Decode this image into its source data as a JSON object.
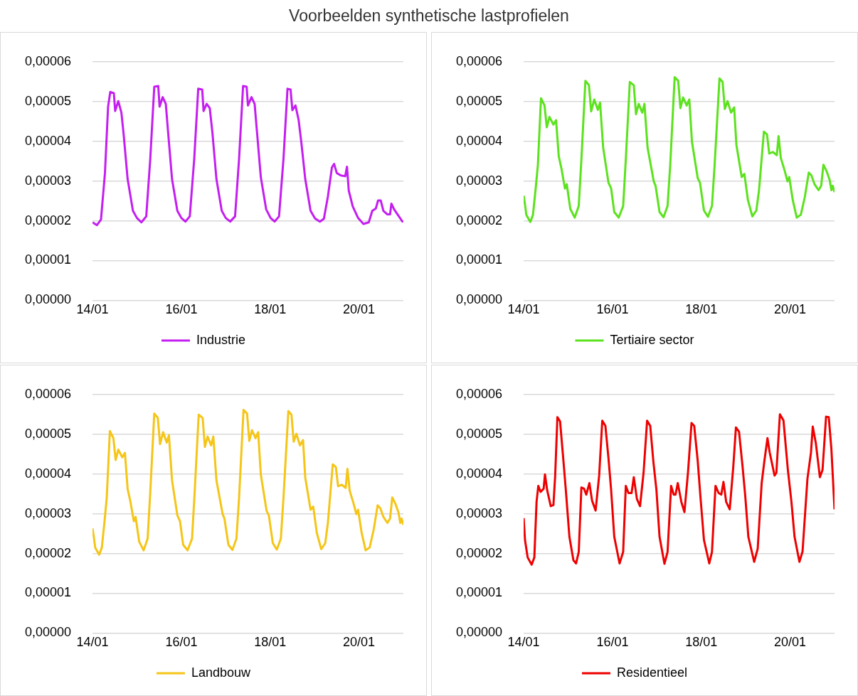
{
  "chart_data": [
    {
      "type": "line",
      "title": "Voorbeelden synthetische lastprofielen",
      "xlim": [
        "--01-14",
        "--01-21"
      ],
      "xticks": [
        {
          "value": "--01-14",
          "label": "14/01"
        },
        {
          "value": "--01-16",
          "label": "16/01"
        },
        {
          "value": "--01-18",
          "label": "18/01"
        },
        {
          "value": "--01-20",
          "label": "20/01"
        }
      ],
      "ylim": [
        0,
        6e-05
      ],
      "yticks": [
        {
          "value": 0,
          "label": "0,00000"
        },
        {
          "value": 1e-05,
          "label": "0,00001"
        },
        {
          "value": 2e-05,
          "label": "0,00002"
        },
        {
          "value": 3e-05,
          "label": "0,00003"
        },
        {
          "value": 4e-05,
          "label": "0,00004"
        },
        {
          "value": 5e-05,
          "label": "0,00005"
        },
        {
          "value": 6e-05,
          "label": "0,00006"
        }
      ],
      "grid": "y",
      "legend": "bottom",
      "marker": "none",
      "x": [
        "--01-14T00:00",
        "--01-14T02:24",
        "--01-14T04:34",
        "--01-14T06:43",
        "--01-14T08:24",
        "--01-14T09:36",
        "--01-14T11:31",
        "--01-14T12:14",
        "--01-14T13:55",
        "--01-14T15:36",
        "--01-14T16:48",
        "--01-14T18:58",
        "--01-14T21:50",
        "--01-15T00:00",
        "--01-15T02:24",
        "--01-15T05:02",
        "--01-15T07:12",
        "--01-15T09:22",
        "--01-15T11:31",
        "--01-15T12:14",
        "--01-15T13:55",
        "--01-15T15:36",
        "--01-15T16:48",
        "--01-15T18:58",
        "--01-15T21:50",
        "--01-16T00:00",
        "--01-16T02:10",
        "--01-16T04:34",
        "--01-16T06:58",
        "--01-16T09:07",
        "--01-16T11:17",
        "--01-16T12:00",
        "--01-16T13:41",
        "--01-16T15:22",
        "--01-16T16:48",
        "--01-16T18:58",
        "--01-16T21:50",
        "--01-17T00:00",
        "--01-17T02:24",
        "--01-17T05:02",
        "--01-17T07:12",
        "--01-17T09:22",
        "--01-17T11:17",
        "--01-17T12:00",
        "--01-17T13:55",
        "--01-17T15:36",
        "--01-17T16:48",
        "--01-17T18:58",
        "--01-17T21:50",
        "--01-18T00:14",
        "--01-18T02:24",
        "--01-18T04:48",
        "--01-18T07:12",
        "--01-18T09:22",
        "--01-18T11:02",
        "--01-18T12:00",
        "--01-18T13:41",
        "--01-18T15:22",
        "--01-18T16:48",
        "--01-18T18:58",
        "--01-18T21:50",
        "--01-19T00:14",
        "--01-19T02:53",
        "--01-19T05:02",
        "--01-19T07:12",
        "--01-19T09:22",
        "--01-19T10:34",
        "--01-19T12:00",
        "--01-19T14:10",
        "--01-19T16:34",
        "--01-19T17:31",
        "--01-19T18:29",
        "--01-19T20:38",
        "--01-19T23:31",
        "--01-20T02:24",
        "--01-20T05:17",
        "--01-20T07:12",
        "--01-20T09:07",
        "--01-20T10:19",
        "--01-20T11:46",
        "--01-20T13:12",
        "--01-20T15:22",
        "--01-20T16:48",
        "--01-20T17:31",
        "--01-20T18:58",
        "--01-20T21:07",
        "--01-20T23:46"
      ],
      "series": [
        {
          "name": "Industrie",
          "color": "#c41ef0",
          "values": [
            1.96e-05,
            1.89e-05,
            2.03e-05,
            3.2e-05,
            4.87e-05,
            5.24e-05,
            5.21e-05,
            4.76e-05,
            5.01e-05,
            4.72e-05,
            4.18e-05,
            3.05e-05,
            2.25e-05,
            2.07e-05,
            1.96e-05,
            2.11e-05,
            3.56e-05,
            5.37e-05,
            5.39e-05,
            4.87e-05,
            5.11e-05,
            4.94e-05,
            4.25e-05,
            3.05e-05,
            2.25e-05,
            2.07e-05,
            1.98e-05,
            2.11e-05,
            3.56e-05,
            5.32e-05,
            5.3e-05,
            4.76e-05,
            4.94e-05,
            4.83e-05,
            4.21e-05,
            3.05e-05,
            2.25e-05,
            2.07e-05,
            1.98e-05,
            2.11e-05,
            3.56e-05,
            5.39e-05,
            5.37e-05,
            4.9e-05,
            5.11e-05,
            4.94e-05,
            4.28e-05,
            3.09e-05,
            2.29e-05,
            2.07e-05,
            1.98e-05,
            2.11e-05,
            3.56e-05,
            5.32e-05,
            5.3e-05,
            4.78e-05,
            4.9e-05,
            4.54e-05,
            3.99e-05,
            3.05e-05,
            2.25e-05,
            2.06e-05,
            1.98e-05,
            2.05e-05,
            2.61e-05,
            3.34e-05,
            3.43e-05,
            3.2e-05,
            3.14e-05,
            3.12e-05,
            3.36e-05,
            2.76e-05,
            2.36e-05,
            2.07e-05,
            1.92e-05,
            1.96e-05,
            2.25e-05,
            2.31e-05,
            2.51e-05,
            2.51e-05,
            2.25e-05,
            2.16e-05,
            2.16e-05,
            2.43e-05,
            2.29e-05,
            2.14e-05,
            1.96e-05
          ]
        }
      ]
    },
    {
      "type": "line",
      "xlim": [
        "--01-14",
        "--01-21"
      ],
      "xticks": [
        {
          "value": "--01-14",
          "label": "14/01"
        },
        {
          "value": "--01-16",
          "label": "16/01"
        },
        {
          "value": "--01-18",
          "label": "18/01"
        },
        {
          "value": "--01-20",
          "label": "20/01"
        }
      ],
      "ylim": [
        0,
        6e-05
      ],
      "yticks": [
        {
          "value": 0,
          "label": "0,00000"
        },
        {
          "value": 1e-05,
          "label": "0,00001"
        },
        {
          "value": 2e-05,
          "label": "0,00002"
        },
        {
          "value": 3e-05,
          "label": "0,00003"
        },
        {
          "value": 4e-05,
          "label": "0,00004"
        },
        {
          "value": 5e-05,
          "label": "0,00005"
        },
        {
          "value": 6e-05,
          "label": "0,00006"
        }
      ],
      "grid": "y",
      "legend": "bottom",
      "marker": "none",
      "x": [
        "--01-14T00:00",
        "--01-14T00:43",
        "--01-14T01:26",
        "--01-14T03:36",
        "--01-14T05:02",
        "--01-14T06:29",
        "--01-14T07:41",
        "--01-14T09:22",
        "--01-14T11:17",
        "--01-14T12:29",
        "--01-14T13:55",
        "--01-14T16:05",
        "--01-14T17:31",
        "--01-14T18:58",
        "--01-14T20:24",
        "--01-14T22:19",
        "--01-14T23:17",
        "--01-15T01:12",
        "--01-15T03:36",
        "--01-15T05:46",
        "--01-15T07:12",
        "--01-15T09:22",
        "--01-15T11:17",
        "--01-15T12:29",
        "--01-15T14:10",
        "--01-15T16:05",
        "--01-15T17:17",
        "--01-15T18:58",
        "--01-15T21:50",
        "--01-15T23:17",
        "--01-16T00:58",
        "--01-16T03:22",
        "--01-16T05:46",
        "--01-16T07:12",
        "--01-16T09:22",
        "--01-16T11:31",
        "--01-16T12:43",
        "--01-16T14:10",
        "--01-16T16:05",
        "--01-16T17:17",
        "--01-16T18:58",
        "--01-16T22:19",
        "--01-16T23:17",
        "--01-17T01:26",
        "--01-17T03:36",
        "--01-17T05:46",
        "--01-17T07:12",
        "--01-17T09:36",
        "--01-17T11:31",
        "--01-17T12:43",
        "--01-17T14:10",
        "--01-17T16:05",
        "--01-17T17:31",
        "--01-17T18:58",
        "--01-17T22:05",
        "--01-17T23:17",
        "--01-18T01:26",
        "--01-18T03:36",
        "--01-18T05:46",
        "--01-18T07:12",
        "--01-18T09:50",
        "--01-18T11:31",
        "--01-18T12:43",
        "--01-18T14:10",
        "--01-18T16:05",
        "--01-18T17:46",
        "--01-18T18:58",
        "--01-18T21:50",
        "--01-18T23:17",
        "--01-19T01:12",
        "--01-19T03:36",
        "--01-19T05:46",
        "--01-19T07:12",
        "--01-19T09:50",
        "--01-19T11:31",
        "--01-19T12:43",
        "--01-19T14:38",
        "--01-19T16:48",
        "--01-19T17:46",
        "--01-19T18:58",
        "--01-19T21:07",
        "--01-19T22:34",
        "--01-19T23:31",
        "--01-20T01:26",
        "--01-20T03:36",
        "--01-20T05:46",
        "--01-20T07:55",
        "--01-20T10:05",
        "--01-20T11:31",
        "--01-20T13:12",
        "--01-20T15:22",
        "--01-20T16:48",
        "--01-20T18:00",
        "--01-20T19:41",
        "--01-20T21:22",
        "--01-20T22:19",
        "--01-20T23:02",
        "--01-21T00:00"
      ],
      "series": [
        {
          "name": "Tertiaire sector",
          "color": "#5ce21e",
          "values": [
            2.63e-05,
            2.41e-05,
            2.15e-05,
            1.97e-05,
            2.15e-05,
            2.81e-05,
            3.4e-05,
            5.08e-05,
            4.9e-05,
            4.35e-05,
            4.61e-05,
            4.42e-05,
            4.53e-05,
            3.62e-05,
            3.32e-05,
            2.81e-05,
            2.92e-05,
            2.3e-05,
            2.08e-05,
            2.37e-05,
            3.54e-05,
            5.52e-05,
            5.41e-05,
            4.75e-05,
            5.05e-05,
            4.79e-05,
            4.97e-05,
            3.84e-05,
            2.96e-05,
            2.81e-05,
            2.22e-05,
            2.08e-05,
            2.37e-05,
            3.54e-05,
            5.49e-05,
            5.41e-05,
            4.68e-05,
            4.94e-05,
            4.72e-05,
            4.94e-05,
            3.84e-05,
            2.99e-05,
            2.88e-05,
            2.22e-05,
            2.09e-05,
            2.37e-05,
            3.4e-05,
            5.61e-05,
            5.52e-05,
            4.83e-05,
            5.1e-05,
            4.9e-05,
            5.05e-05,
            3.98e-05,
            3.07e-05,
            2.96e-05,
            2.26e-05,
            2.1e-05,
            2.37e-05,
            3.4e-05,
            5.58e-05,
            5.49e-05,
            4.81e-05,
            5.01e-05,
            4.72e-05,
            4.85e-05,
            3.91e-05,
            3.1e-05,
            3.18e-05,
            2.52e-05,
            2.11e-05,
            2.26e-05,
            2.77e-05,
            4.24e-05,
            4.17e-05,
            3.69e-05,
            3.73e-05,
            3.65e-05,
            4.13e-05,
            3.58e-05,
            3.25e-05,
            2.99e-05,
            3.1e-05,
            2.52e-05,
            2.08e-05,
            2.15e-05,
            2.59e-05,
            3.21e-05,
            3.14e-05,
            2.92e-05,
            2.77e-05,
            2.88e-05,
            3.41e-05,
            3.25e-05,
            3.03e-05,
            2.77e-05,
            2.88e-05,
            2.72e-05
          ]
        }
      ]
    },
    {
      "type": "line",
      "xlim": [
        "--01-14",
        "--01-21"
      ],
      "xticks": [
        {
          "value": "--01-14",
          "label": "14/01"
        },
        {
          "value": "--01-16",
          "label": "16/01"
        },
        {
          "value": "--01-18",
          "label": "18/01"
        },
        {
          "value": "--01-20",
          "label": "20/01"
        }
      ],
      "ylim": [
        0,
        6e-05
      ],
      "yticks": [
        {
          "value": 0,
          "label": "0,00000"
        },
        {
          "value": 1e-05,
          "label": "0,00001"
        },
        {
          "value": 2e-05,
          "label": "0,00002"
        },
        {
          "value": 3e-05,
          "label": "0,00003"
        },
        {
          "value": 4e-05,
          "label": "0,00004"
        },
        {
          "value": 5e-05,
          "label": "0,00005"
        },
        {
          "value": 6e-05,
          "label": "0,00006"
        }
      ],
      "grid": "y",
      "legend": "bottom",
      "marker": "none",
      "x": [
        "--01-14T00:00",
        "--01-14T00:43",
        "--01-14T01:26",
        "--01-14T03:36",
        "--01-14T05:02",
        "--01-14T06:29",
        "--01-14T07:41",
        "--01-14T09:22",
        "--01-14T11:17",
        "--01-14T12:29",
        "--01-14T13:55",
        "--01-14T16:05",
        "--01-14T17:31",
        "--01-14T18:58",
        "--01-14T20:24",
        "--01-14T22:19",
        "--01-14T23:17",
        "--01-15T01:12",
        "--01-15T03:36",
        "--01-15T05:46",
        "--01-15T07:12",
        "--01-15T09:22",
        "--01-15T11:17",
        "--01-15T12:29",
        "--01-15T14:10",
        "--01-15T16:05",
        "--01-15T17:17",
        "--01-15T18:58",
        "--01-15T21:50",
        "--01-15T23:17",
        "--01-16T00:58",
        "--01-16T03:22",
        "--01-16T05:46",
        "--01-16T07:12",
        "--01-16T09:22",
        "--01-16T11:31",
        "--01-16T12:43",
        "--01-16T14:10",
        "--01-16T16:05",
        "--01-16T17:17",
        "--01-16T18:58",
        "--01-16T22:19",
        "--01-16T23:17",
        "--01-17T01:26",
        "--01-17T03:36",
        "--01-17T05:46",
        "--01-17T07:12",
        "--01-17T09:36",
        "--01-17T11:31",
        "--01-17T12:43",
        "--01-17T14:10",
        "--01-17T16:05",
        "--01-17T17:31",
        "--01-17T18:58",
        "--01-17T22:05",
        "--01-17T23:17",
        "--01-18T01:26",
        "--01-18T03:36",
        "--01-18T05:46",
        "--01-18T07:12",
        "--01-18T09:50",
        "--01-18T11:31",
        "--01-18T12:43",
        "--01-18T14:10",
        "--01-18T16:05",
        "--01-18T17:46",
        "--01-18T18:58",
        "--01-18T21:50",
        "--01-18T23:17",
        "--01-19T01:12",
        "--01-19T03:36",
        "--01-19T05:46",
        "--01-19T07:12",
        "--01-19T09:50",
        "--01-19T11:31",
        "--01-19T12:43",
        "--01-19T14:38",
        "--01-19T16:48",
        "--01-19T17:46",
        "--01-19T18:58",
        "--01-19T21:07",
        "--01-19T22:34",
        "--01-19T23:31",
        "--01-20T01:26",
        "--01-20T03:36",
        "--01-20T05:46",
        "--01-20T07:55",
        "--01-20T10:05",
        "--01-20T11:31",
        "--01-20T13:12",
        "--01-20T15:22",
        "--01-20T16:48",
        "--01-20T18:00",
        "--01-20T19:41",
        "--01-20T21:22",
        "--01-20T22:19",
        "--01-20T23:02",
        "--01-21T00:00"
      ],
      "series": [
        {
          "name": "Landbouw",
          "color": "#f5c518",
          "values": [
            2.63e-05,
            2.41e-05,
            2.15e-05,
            1.97e-05,
            2.15e-05,
            2.81e-05,
            3.4e-05,
            5.08e-05,
            4.9e-05,
            4.35e-05,
            4.61e-05,
            4.42e-05,
            4.53e-05,
            3.62e-05,
            3.32e-05,
            2.81e-05,
            2.92e-05,
            2.3e-05,
            2.08e-05,
            2.37e-05,
            3.54e-05,
            5.52e-05,
            5.41e-05,
            4.75e-05,
            5.05e-05,
            4.79e-05,
            4.97e-05,
            3.84e-05,
            2.96e-05,
            2.81e-05,
            2.22e-05,
            2.08e-05,
            2.37e-05,
            3.54e-05,
            5.49e-05,
            5.41e-05,
            4.68e-05,
            4.94e-05,
            4.72e-05,
            4.94e-05,
            3.84e-05,
            2.99e-05,
            2.88e-05,
            2.22e-05,
            2.09e-05,
            2.37e-05,
            3.4e-05,
            5.61e-05,
            5.52e-05,
            4.83e-05,
            5.1e-05,
            4.9e-05,
            5.05e-05,
            3.98e-05,
            3.07e-05,
            2.96e-05,
            2.26e-05,
            2.1e-05,
            2.37e-05,
            3.4e-05,
            5.58e-05,
            5.49e-05,
            4.81e-05,
            5.01e-05,
            4.72e-05,
            4.85e-05,
            3.91e-05,
            3.1e-05,
            3.18e-05,
            2.52e-05,
            2.11e-05,
            2.26e-05,
            2.77e-05,
            4.24e-05,
            4.17e-05,
            3.69e-05,
            3.73e-05,
            3.65e-05,
            4.13e-05,
            3.58e-05,
            3.25e-05,
            2.99e-05,
            3.1e-05,
            2.52e-05,
            2.08e-05,
            2.15e-05,
            2.59e-05,
            3.21e-05,
            3.14e-05,
            2.92e-05,
            2.77e-05,
            2.88e-05,
            3.41e-05,
            3.25e-05,
            3.03e-05,
            2.77e-05,
            2.88e-05,
            2.72e-05
          ]
        }
      ]
    },
    {
      "type": "line",
      "xlim": [
        "--01-14",
        "--01-21"
      ],
      "xticks": [
        {
          "value": "--01-14",
          "label": "14/01"
        },
        {
          "value": "--01-16",
          "label": "16/01"
        },
        {
          "value": "--01-18",
          "label": "18/01"
        },
        {
          "value": "--01-20",
          "label": "20/01"
        }
      ],
      "ylim": [
        0,
        6e-05
      ],
      "yticks": [
        {
          "value": 0,
          "label": "0,00000"
        },
        {
          "value": 1e-05,
          "label": "0,00001"
        },
        {
          "value": 2e-05,
          "label": "0,00002"
        },
        {
          "value": 3e-05,
          "label": "0,00003"
        },
        {
          "value": 4e-05,
          "label": "0,00004"
        },
        {
          "value": 5e-05,
          "label": "0,00005"
        },
        {
          "value": 6e-05,
          "label": "0,00006"
        }
      ],
      "grid": "y",
      "legend": "bottom",
      "marker": "none",
      "x": [
        "--01-14T00:00",
        "--01-14T00:43",
        "--01-14T02:10",
        "--01-14T04:19",
        "--01-14T05:46",
        "--01-14T06:58",
        "--01-14T07:55",
        "--01-14T09:07",
        "--01-14T10:48",
        "--01-14T11:31",
        "--01-14T12:43",
        "--01-14T14:38",
        "--01-14T16:05",
        "--01-14T17:02",
        "--01-14T18:14",
        "--01-14T19:41",
        "--01-14T21:22",
        "--01-14T22:48",
        "--01-15T00:43",
        "--01-15T02:53",
        "--01-15T04:19",
        "--01-15T05:46",
        "--01-15T07:12",
        "--01-15T08:38",
        "--01-15T09:50",
        "--01-15T11:31",
        "--01-15T12:58",
        "--01-15T14:53",
        "--01-15T16:48",
        "--01-15T18:29",
        "--01-15T20:10",
        "--01-15T21:50",
        "--01-15T23:17",
        "--01-16T00:58",
        "--01-16T03:50",
        "--01-16T05:46",
        "--01-16T07:12",
        "--01-16T08:38",
        "--01-16T10:19",
        "--01-16T11:31",
        "--01-16T13:12",
        "--01-16T14:53",
        "--01-16T16:48",
        "--01-16T18:43",
        "--01-16T20:24",
        "--01-16T22:05",
        "--01-16T23:46",
        "--01-17T01:26",
        "--01-17T04:05",
        "--01-17T05:46",
        "--01-17T07:41",
        "--01-17T09:07",
        "--01-17T10:05",
        "--01-17T11:17",
        "--01-17T13:12",
        "--01-17T14:53",
        "--01-17T16:48",
        "--01-17T18:43",
        "--01-17T20:10",
        "--01-17T22:05",
        "--01-17T23:31",
        "--01-18T01:26",
        "--01-18T04:19",
        "--01-18T05:46",
        "--01-18T07:41",
        "--01-18T09:22",
        "--01-18T10:48",
        "--01-18T12:00",
        "--01-18T13:26",
        "--01-18T15:22",
        "--01-18T17:17",
        "--01-18T18:43",
        "--01-18T20:24",
        "--01-18T22:19",
        "--01-18T23:46",
        "--01-19T01:26",
        "--01-19T04:34",
        "--01-19T06:29",
        "--01-19T08:38",
        "--01-19T10:05",
        "--01-19T11:46",
        "--01-19T12:58",
        "--01-19T15:36",
        "--01-19T16:34",
        "--01-19T18:29",
        "--01-19T20:24",
        "--01-19T22:48",
        "--01-20T00:43",
        "--01-20T02:24",
        "--01-20T05:02",
        "--01-20T06:43",
        "--01-20T09:22",
        "--01-20T11:17",
        "--01-20T12:14",
        "--01-20T13:55",
        "--01-20T16:05",
        "--01-20T17:31",
        "--01-20T19:26",
        "--01-20T20:53",
        "--01-20T22:19",
        "--01-21T00:00"
      ],
      "series": [
        {
          "name": "Residentieel",
          "color": "#ee0000",
          "values": [
            2.89e-05,
            2.34e-05,
            1.9e-05,
            1.72e-05,
            1.9e-05,
            3.3e-05,
            3.7e-05,
            3.55e-05,
            3.63e-05,
            3.99e-05,
            3.59e-05,
            3.19e-05,
            3.22e-05,
            3.96e-05,
            5.43e-05,
            5.32e-05,
            4.4e-05,
            3.59e-05,
            2.42e-05,
            1.83e-05,
            1.75e-05,
            2.04e-05,
            3.66e-05,
            3.63e-05,
            3.48e-05,
            3.77e-05,
            3.33e-05,
            3.08e-05,
            3.96e-05,
            5.34e-05,
            5.21e-05,
            4.4e-05,
            3.59e-05,
            2.42e-05,
            1.75e-05,
            2.04e-05,
            3.7e-05,
            3.52e-05,
            3.52e-05,
            3.92e-05,
            3.37e-05,
            3.19e-05,
            4.03e-05,
            5.34e-05,
            5.21e-05,
            4.32e-05,
            3.59e-05,
            2.42e-05,
            1.74e-05,
            2.04e-05,
            3.7e-05,
            3.48e-05,
            3.48e-05,
            3.77e-05,
            3.3e-05,
            3.04e-05,
            4.03e-05,
            5.28e-05,
            5.21e-05,
            4.32e-05,
            3.44e-05,
            2.34e-05,
            1.75e-05,
            2.04e-05,
            3.7e-05,
            3.52e-05,
            3.48e-05,
            3.8e-05,
            3.3e-05,
            3.11e-05,
            4.18e-05,
            5.17e-05,
            5.06e-05,
            4.18e-05,
            3.44e-05,
            2.42e-05,
            1.79e-05,
            2.12e-05,
            3.77e-05,
            4.32e-05,
            4.9e-05,
            4.54e-05,
            3.96e-05,
            4.03e-05,
            5.5e-05,
            5.35e-05,
            4.1e-05,
            3.3e-05,
            2.42e-05,
            1.79e-05,
            2.05e-05,
            3.88e-05,
            4.54e-05,
            5.19e-05,
            4.77e-05,
            3.92e-05,
            4.1e-05,
            5.44e-05,
            5.43e-05,
            4.62e-05,
            3.11e-05
          ]
        }
      ]
    }
  ]
}
